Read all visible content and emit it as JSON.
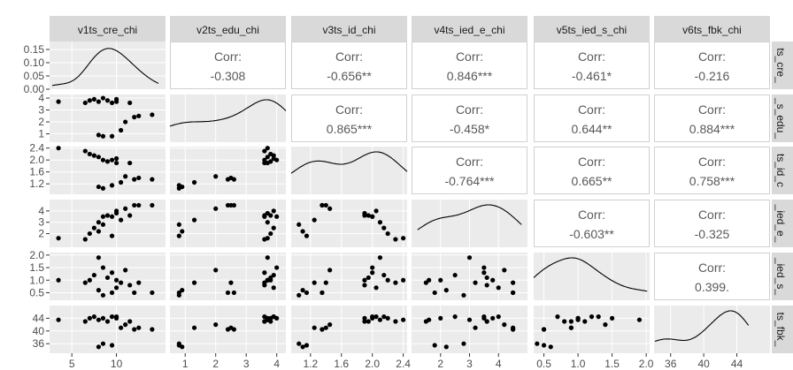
{
  "chart_data": {
    "type": "scatter",
    "layout": "pairs-matrix",
    "variables": [
      "v1ts_cre_chi",
      "v2ts_edu_chi",
      "v3ts_id_chi",
      "v4ts_ied_e_chi",
      "v5ts_ied_s_chi",
      "v6ts_fbk_chi"
    ],
    "row_labels": [
      "ts_cre_",
      "_s_edu_",
      "ts_id_c",
      "_ied_e_",
      "_ied_s_",
      "ts_fbk_"
    ],
    "corr_label": "Corr:",
    "correlations": [
      {
        "row": 0,
        "col": 1,
        "value": "-0.308"
      },
      {
        "row": 0,
        "col": 2,
        "value": "-0.656**"
      },
      {
        "row": 0,
        "col": 3,
        "value": "0.846***"
      },
      {
        "row": 0,
        "col": 4,
        "value": "-0.461*"
      },
      {
        "row": 0,
        "col": 5,
        "value": "-0.216"
      },
      {
        "row": 1,
        "col": 2,
        "value": "0.865***"
      },
      {
        "row": 1,
        "col": 3,
        "value": "-0.458*"
      },
      {
        "row": 1,
        "col": 4,
        "value": "0.644**"
      },
      {
        "row": 1,
        "col": 5,
        "value": "0.884***"
      },
      {
        "row": 2,
        "col": 3,
        "value": "-0.764***"
      },
      {
        "row": 2,
        "col": 4,
        "value": "0.665**"
      },
      {
        "row": 2,
        "col": 5,
        "value": "0.758***"
      },
      {
        "row": 3,
        "col": 4,
        "value": "-0.603**"
      },
      {
        "row": 3,
        "col": 5,
        "value": "-0.325"
      },
      {
        "row": 4,
        "col": 5,
        "value": "0.399."
      }
    ],
    "x_ranges": [
      [
        2.5,
        15.5
      ],
      [
        0.5,
        4.3
      ],
      [
        0.95,
        2.45
      ],
      [
        1.0,
        5.0
      ],
      [
        0.35,
        2.05
      ],
      [
        34,
        48
      ]
    ],
    "y_ranges": [
      [
        0,
        0.18
      ],
      [
        0.3,
        4.3
      ],
      [
        0.85,
        2.45
      ],
      [
        0.8,
        5.0
      ],
      [
        0.2,
        2.1
      ],
      [
        33,
        48
      ]
    ],
    "x_ticks": [
      [
        5,
        10
      ],
      [
        1,
        2,
        3,
        4
      ],
      [
        1.2,
        1.6,
        2.0,
        2.4
      ],
      [
        2,
        3,
        4
      ],
      [
        0.5,
        1.0,
        1.5,
        2.0
      ],
      [
        36,
        40,
        44
      ]
    ],
    "x_tick_labels": [
      [
        "5",
        "10"
      ],
      [
        "1",
        "2",
        "3",
        "4"
      ],
      [
        "1.2",
        "1.6",
        "2.0",
        "2.4"
      ],
      [
        "2",
        "3",
        "4"
      ],
      [
        "0.5",
        "1.0",
        "1.5",
        "2.0"
      ],
      [
        "36",
        "40",
        "44"
      ]
    ],
    "y_ticks": [
      [
        0.0,
        0.05,
        0.1,
        0.15
      ],
      [
        1,
        2,
        3,
        4
      ],
      [
        1.2,
        1.6,
        2.0,
        2.4
      ],
      [
        2,
        3,
        4
      ],
      [
        0.5,
        1.0,
        1.5,
        2.0
      ],
      [
        36,
        40,
        44
      ]
    ],
    "y_tick_labels": [
      [
        "0.00",
        "0.05",
        "0.10",
        "0.15"
      ],
      [
        "1",
        "2",
        "3",
        "4"
      ],
      [
        "1.2",
        "1.6",
        "2.0",
        "2.4"
      ],
      [
        "2",
        "3",
        "4"
      ],
      [
        "0.5",
        "1.0",
        "1.5",
        "2.0"
      ],
      [
        "36",
        "40",
        "44"
      ]
    ],
    "observations": {
      "v1ts_cre_chi": [
        3.5,
        6.5,
        7.0,
        7.5,
        8.0,
        8.0,
        8.5,
        8.5,
        9.0,
        9.5,
        9.5,
        10.0,
        10.0,
        10.5,
        11.0,
        11.5,
        12.0,
        12.5,
        14.0
      ],
      "v2ts_edu_chi": [
        3.7,
        3.6,
        3.8,
        3.9,
        3.7,
        0.9,
        4.0,
        0.8,
        3.8,
        3.6,
        0.8,
        3.7,
        3.9,
        1.3,
        2.0,
        3.6,
        2.4,
        2.5,
        2.6
      ],
      "v3ts_id_chi": [
        2.4,
        2.3,
        2.2,
        2.15,
        2.1,
        1.1,
        2.0,
        1.05,
        1.95,
        2.0,
        1.15,
        1.9,
        2.05,
        1.25,
        1.45,
        1.9,
        1.35,
        1.4,
        1.35
      ],
      "v4ts_ied_e_chi": [
        1.6,
        1.5,
        2.0,
        2.5,
        3.0,
        2.2,
        3.5,
        2.8,
        3.6,
        3.5,
        1.8,
        3.8,
        4.0,
        3.2,
        4.2,
        3.6,
        4.5,
        4.5,
        4.5
      ],
      "v5ts_ied_s_chi": [
        1.0,
        0.9,
        1.0,
        1.2,
        1.9,
        0.6,
        1.5,
        0.4,
        1.1,
        1.3,
        0.5,
        1.0,
        0.7,
        0.9,
        1.4,
        0.8,
        0.5,
        0.9,
        0.5
      ],
      "v6ts_fbk_chi": [
        43.5,
        43.0,
        44.0,
        44.5,
        43.5,
        35.0,
        44.0,
        36.0,
        43.0,
        44.5,
        35.5,
        44.0,
        44.5,
        41.0,
        42.0,
        43.0,
        40.5,
        41.0,
        40.5
      ]
    },
    "grid": true,
    "panel_background": "#ebebeb",
    "strip_background": "#d9d9d9",
    "point_color": "#000000"
  }
}
